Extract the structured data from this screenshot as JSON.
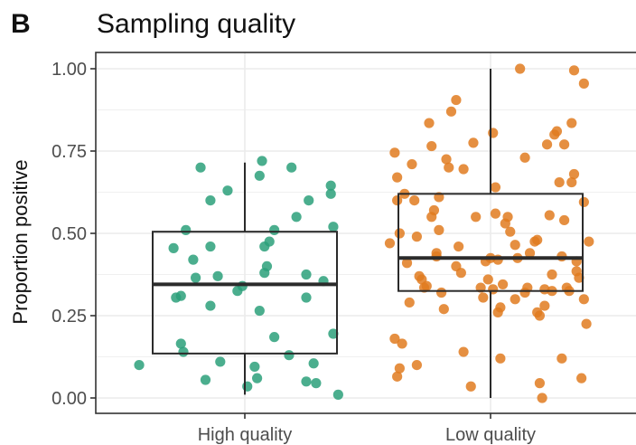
{
  "panel": {
    "letter": "B"
  },
  "chart_data": {
    "type": "box+jitter",
    "title": "Sampling quality",
    "xlabel": "",
    "ylabel": "Proportion positive",
    "ylim": [
      0,
      1.0
    ],
    "yticks": [
      "0.00",
      "0.25",
      "0.50",
      "0.75",
      "1.00"
    ],
    "grid": true,
    "categories": [
      "High quality",
      "Low quality"
    ],
    "colors": {
      "High quality": "#2ca07a",
      "Low quality": "#e07b20",
      "box": "#2b2b2b",
      "grid": "#ebebeb",
      "panel_border": "#333333"
    },
    "box_stats": [
      {
        "category": "High quality",
        "whisker_low": 0.01,
        "q1": 0.135,
        "median": 0.345,
        "q3": 0.505,
        "whisker_high": 0.715
      },
      {
        "category": "Low quality",
        "whisker_low": 0.0,
        "q1": 0.325,
        "median": 0.425,
        "q3": 0.62,
        "whisker_high": 1.0
      }
    ],
    "points": {
      "High quality": [
        {
          "x": 0.57,
          "y": 0.1
        },
        {
          "x": 0.71,
          "y": 0.455
        },
        {
          "x": 0.76,
          "y": 0.51
        },
        {
          "x": 0.72,
          "y": 0.305
        },
        {
          "x": 0.74,
          "y": 0.165
        },
        {
          "x": 0.75,
          "y": 0.14
        },
        {
          "x": 0.74,
          "y": 0.31
        },
        {
          "x": 0.79,
          "y": 0.42
        },
        {
          "x": 0.82,
          "y": 0.7
        },
        {
          "x": 0.86,
          "y": 0.6
        },
        {
          "x": 0.84,
          "y": 0.055
        },
        {
          "x": 0.86,
          "y": 0.46
        },
        {
          "x": 0.86,
          "y": 0.28
        },
        {
          "x": 0.89,
          "y": 0.37
        },
        {
          "x": 0.8,
          "y": 0.365
        },
        {
          "x": 0.9,
          "y": 0.11
        },
        {
          "x": 0.93,
          "y": 0.63
        },
        {
          "x": 0.97,
          "y": 0.325
        },
        {
          "x": 0.99,
          "y": 0.34
        },
        {
          "x": 1.01,
          "y": 0.035
        },
        {
          "x": 1.04,
          "y": 0.095
        },
        {
          "x": 1.05,
          "y": 0.06
        },
        {
          "x": 1.06,
          "y": 0.265
        },
        {
          "x": 1.06,
          "y": 0.675
        },
        {
          "x": 1.07,
          "y": 0.72
        },
        {
          "x": 1.08,
          "y": 0.46
        },
        {
          "x": 1.08,
          "y": 0.38
        },
        {
          "x": 1.09,
          "y": 0.4
        },
        {
          "x": 1.1,
          "y": 0.475
        },
        {
          "x": 1.12,
          "y": 0.51
        },
        {
          "x": 1.12,
          "y": 0.185
        },
        {
          "x": 1.18,
          "y": 0.13
        },
        {
          "x": 1.19,
          "y": 0.7
        },
        {
          "x": 1.21,
          "y": 0.55
        },
        {
          "x": 1.25,
          "y": 0.375
        },
        {
          "x": 1.25,
          "y": 0.305
        },
        {
          "x": 1.25,
          "y": 0.05
        },
        {
          "x": 1.26,
          "y": 0.6
        },
        {
          "x": 1.28,
          "y": 0.105
        },
        {
          "x": 1.29,
          "y": 0.045
        },
        {
          "x": 1.32,
          "y": 0.355
        },
        {
          "x": 1.35,
          "y": 0.645
        },
        {
          "x": 1.35,
          "y": 0.62
        },
        {
          "x": 1.36,
          "y": 0.52
        },
        {
          "x": 1.36,
          "y": 0.195
        },
        {
          "x": 1.38,
          "y": 0.01
        }
      ],
      "Low quality": [
        {
          "x": 1.59,
          "y": 0.47
        },
        {
          "x": 1.61,
          "y": 0.745
        },
        {
          "x": 1.62,
          "y": 0.67
        },
        {
          "x": 1.62,
          "y": 0.6
        },
        {
          "x": 1.63,
          "y": 0.5
        },
        {
          "x": 1.61,
          "y": 0.18
        },
        {
          "x": 1.62,
          "y": 0.065
        },
        {
          "x": 1.63,
          "y": 0.09
        },
        {
          "x": 1.64,
          "y": 0.165
        },
        {
          "x": 1.65,
          "y": 0.62
        },
        {
          "x": 1.66,
          "y": 0.41
        },
        {
          "x": 1.67,
          "y": 0.29
        },
        {
          "x": 1.68,
          "y": 0.71
        },
        {
          "x": 1.69,
          "y": 0.6
        },
        {
          "x": 1.7,
          "y": 0.49
        },
        {
          "x": 1.7,
          "y": 0.1
        },
        {
          "x": 1.71,
          "y": 0.37
        },
        {
          "x": 1.72,
          "y": 0.36
        },
        {
          "x": 1.73,
          "y": 0.335
        },
        {
          "x": 1.74,
          "y": 0.34
        },
        {
          "x": 1.75,
          "y": 0.835
        },
        {
          "x": 1.76,
          "y": 0.765
        },
        {
          "x": 1.76,
          "y": 0.55
        },
        {
          "x": 1.77,
          "y": 0.57
        },
        {
          "x": 1.78,
          "y": 0.43
        },
        {
          "x": 1.78,
          "y": 0.44
        },
        {
          "x": 1.79,
          "y": 0.61
        },
        {
          "x": 1.79,
          "y": 0.51
        },
        {
          "x": 1.8,
          "y": 0.32
        },
        {
          "x": 1.81,
          "y": 0.27
        },
        {
          "x": 1.82,
          "y": 0.725
        },
        {
          "x": 1.83,
          "y": 0.7
        },
        {
          "x": 1.84,
          "y": 0.87
        },
        {
          "x": 1.86,
          "y": 0.905
        },
        {
          "x": 1.86,
          "y": 0.4
        },
        {
          "x": 1.87,
          "y": 0.46
        },
        {
          "x": 1.88,
          "y": 0.38
        },
        {
          "x": 1.89,
          "y": 0.695
        },
        {
          "x": 1.89,
          "y": 0.14
        },
        {
          "x": 1.92,
          "y": 0.035
        },
        {
          "x": 1.93,
          "y": 0.775
        },
        {
          "x": 1.94,
          "y": 0.55
        },
        {
          "x": 1.96,
          "y": 0.335
        },
        {
          "x": 1.97,
          "y": 0.305
        },
        {
          "x": 1.98,
          "y": 0.415
        },
        {
          "x": 1.99,
          "y": 0.36
        },
        {
          "x": 2.0,
          "y": 0.425
        },
        {
          "x": 2.01,
          "y": 0.33
        },
        {
          "x": 2.01,
          "y": 0.805
        },
        {
          "x": 2.02,
          "y": 0.64
        },
        {
          "x": 2.02,
          "y": 0.56
        },
        {
          "x": 2.03,
          "y": 0.42
        },
        {
          "x": 2.03,
          "y": 0.26
        },
        {
          "x": 2.04,
          "y": 0.12
        },
        {
          "x": 2.04,
          "y": 0.275
        },
        {
          "x": 2.05,
          "y": 0.345
        },
        {
          "x": 2.06,
          "y": 0.53
        },
        {
          "x": 2.07,
          "y": 0.55
        },
        {
          "x": 2.08,
          "y": 0.505
        },
        {
          "x": 2.1,
          "y": 0.465
        },
        {
          "x": 2.1,
          "y": 0.3
        },
        {
          "x": 2.11,
          "y": 0.425
        },
        {
          "x": 2.12,
          "y": 1.0
        },
        {
          "x": 2.14,
          "y": 0.73
        },
        {
          "x": 2.14,
          "y": 0.32
        },
        {
          "x": 2.15,
          "y": 0.335
        },
        {
          "x": 2.16,
          "y": 0.44
        },
        {
          "x": 2.18,
          "y": 0.475
        },
        {
          "x": 2.19,
          "y": 0.48
        },
        {
          "x": 2.19,
          "y": 0.26
        },
        {
          "x": 2.2,
          "y": 0.25
        },
        {
          "x": 2.2,
          "y": 0.045
        },
        {
          "x": 2.21,
          "y": 0.0
        },
        {
          "x": 2.22,
          "y": 0.28
        },
        {
          "x": 2.22,
          "y": 0.33
        },
        {
          "x": 2.23,
          "y": 0.77
        },
        {
          "x": 2.24,
          "y": 0.555
        },
        {
          "x": 2.25,
          "y": 0.375
        },
        {
          "x": 2.25,
          "y": 0.325
        },
        {
          "x": 2.26,
          "y": 0.8
        },
        {
          "x": 2.27,
          "y": 0.81
        },
        {
          "x": 2.28,
          "y": 0.655
        },
        {
          "x": 2.29,
          "y": 0.43
        },
        {
          "x": 2.29,
          "y": 0.12
        },
        {
          "x": 2.3,
          "y": 0.77
        },
        {
          "x": 2.3,
          "y": 0.54
        },
        {
          "x": 2.31,
          "y": 0.335
        },
        {
          "x": 2.32,
          "y": 0.325
        },
        {
          "x": 2.33,
          "y": 0.835
        },
        {
          "x": 2.33,
          "y": 0.655
        },
        {
          "x": 2.34,
          "y": 0.68
        },
        {
          "x": 2.34,
          "y": 0.995
        },
        {
          "x": 2.35,
          "y": 0.415
        },
        {
          "x": 2.35,
          "y": 0.385
        },
        {
          "x": 2.36,
          "y": 0.365
        },
        {
          "x": 2.37,
          "y": 0.06
        },
        {
          "x": 2.38,
          "y": 0.955
        },
        {
          "x": 2.38,
          "y": 0.595
        },
        {
          "x": 2.38,
          "y": 0.3
        },
        {
          "x": 2.39,
          "y": 0.225
        },
        {
          "x": 2.4,
          "y": 0.475
        }
      ]
    }
  }
}
